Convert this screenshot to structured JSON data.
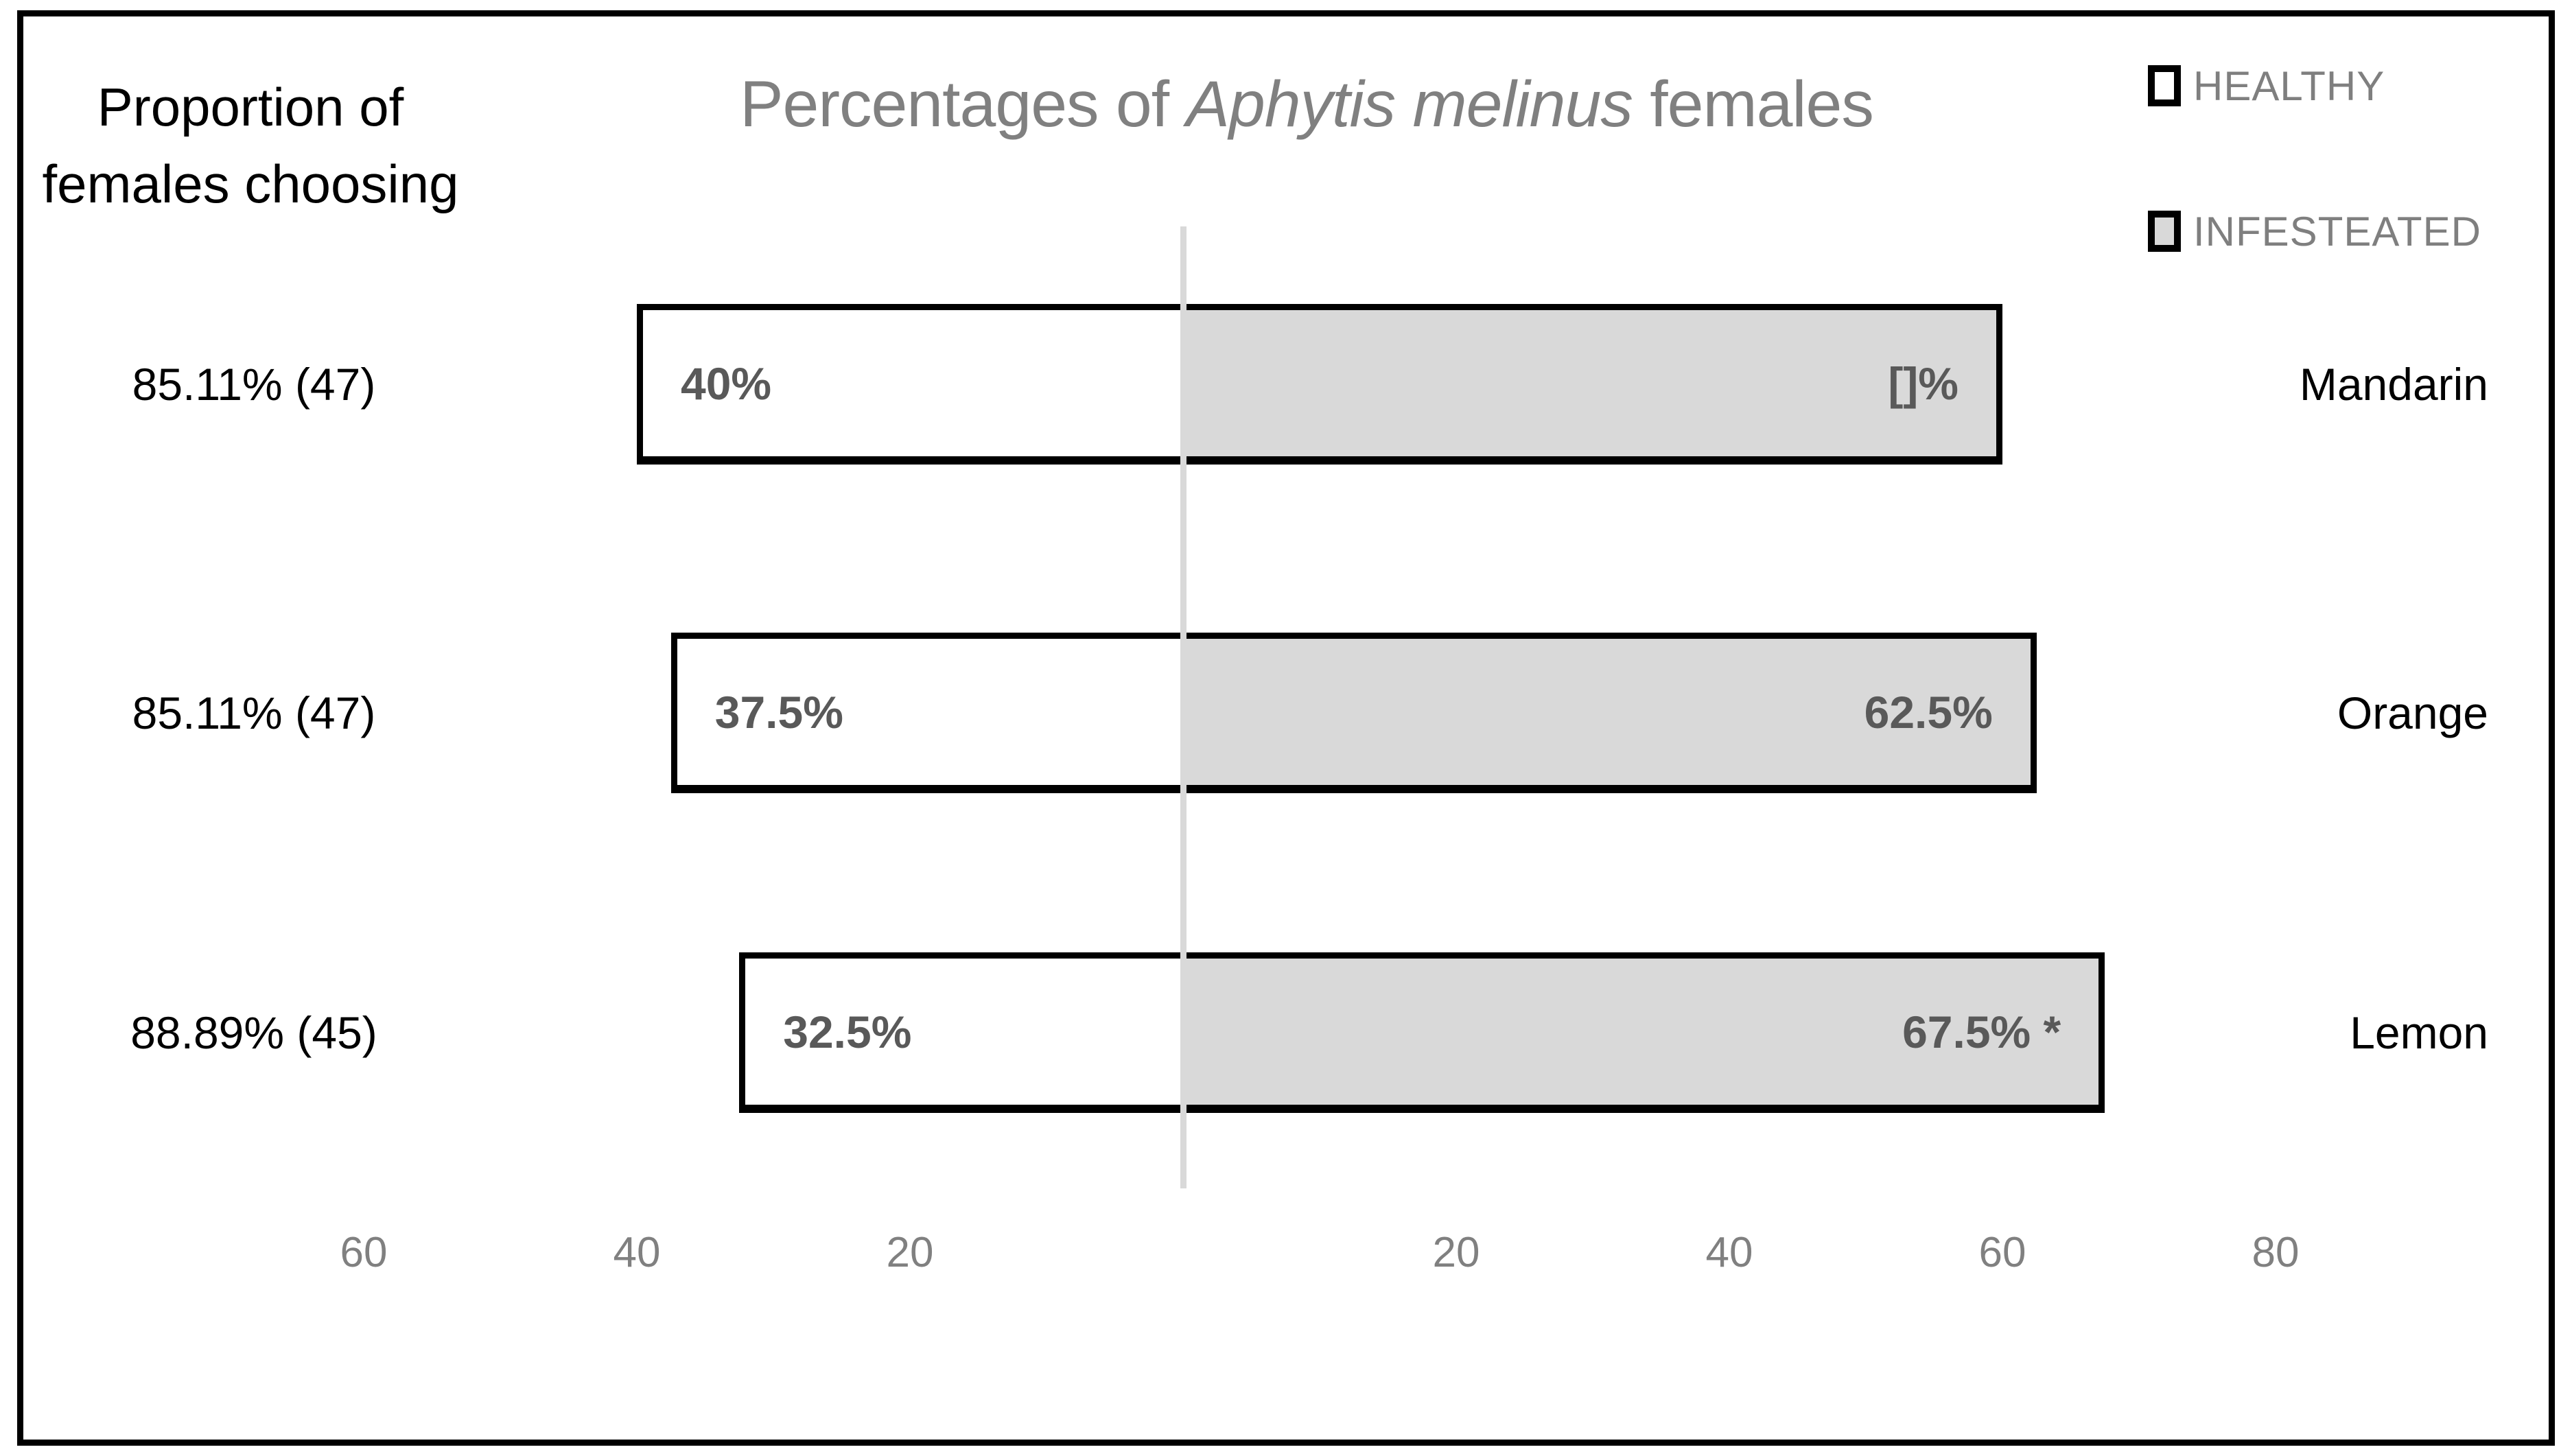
{
  "chart_data": {
    "type": "bar",
    "variant": "diverging-horizontal-stacked",
    "title": "Percentages of Aphytis melinus females",
    "title_parts": {
      "prefix": "Percentages of ",
      "italic": "Aphytis melinus",
      "suffix": " females"
    },
    "left_axis_title": {
      "line1": "Proportion of",
      "line2": "females choosing"
    },
    "categories": [
      "Mandarin",
      "Orange",
      "Lemon"
    ],
    "proportion_labels": [
      "85.11% (47)",
      "85.11% (47)",
      "88.89% (45)"
    ],
    "series": [
      {
        "name": "HEALTHY",
        "values": [
          40,
          37.5,
          32.5
        ],
        "data_labels": [
          "40%",
          "37.5%",
          "32.5%"
        ],
        "fill": "#ffffff"
      },
      {
        "name": "INFESTEATED",
        "values": [
          60,
          62.5,
          67.5
        ],
        "data_labels": [
          "[]%",
          "62.5%",
          "67.5% *"
        ],
        "fill": "#d9d9d9"
      }
    ],
    "x_ticks": [
      {
        "label": "60",
        "unit": -60
      },
      {
        "label": "40",
        "unit": -40
      },
      {
        "label": "20",
        "unit": -20
      },
      {
        "label": "20",
        "unit": 20
      },
      {
        "label": "40",
        "unit": 40
      },
      {
        "label": "60",
        "unit": 60
      },
      {
        "label": "80",
        "unit": 80
      }
    ],
    "legend_position": "top-right",
    "grid": "off",
    "center_axis_value": 0
  },
  "colors": {
    "background": "#ffffff",
    "frame_border": "#000000",
    "bar_border": "#000000",
    "healthy_fill": "#ffffff",
    "infested_fill": "#d9d9d9",
    "center_axis_line": "#d9d9d9",
    "muted_text": "#808080",
    "bar_label_text": "#595959",
    "primary_text": "#000000"
  }
}
